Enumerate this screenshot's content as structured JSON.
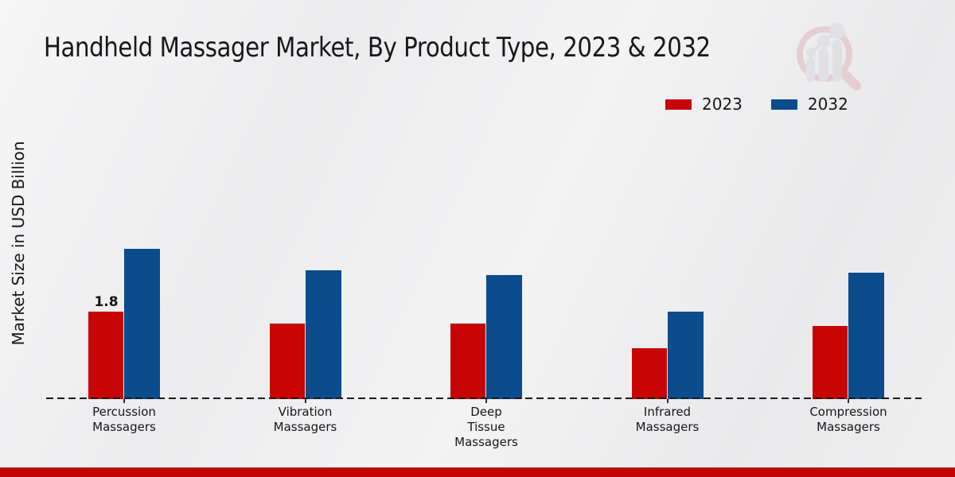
{
  "page": {
    "title": "Handheld Massager Market, By Product Type, 2023 & 2032",
    "ylabel": "Market Size in USD Billion",
    "watermark_icon": "magnifier-growth-chart-logo",
    "accent_bar_color": "#c30404",
    "text_color": "#17181a"
  },
  "legend": {
    "items": [
      {
        "label": "2023",
        "color": "#c70505"
      },
      {
        "label": "2032",
        "color": "#0a4c8c"
      }
    ]
  },
  "chart_data": {
    "type": "bar",
    "title": "Handheld Massager Market, By Product Type, 2023 & 2032",
    "ylabel": "Market Size in USD Billion",
    "units": "USD Billion",
    "categories": [
      "Percussion Massagers",
      "Vibration Massagers",
      "Deep Tissue Massagers",
      "Infrared Massagers",
      "Compression Massagers"
    ],
    "category_label_lines": [
      [
        "Percussion",
        "Massagers"
      ],
      [
        "Vibration",
        "Massagers"
      ],
      [
        "Deep",
        "Tissue",
        "Massagers"
      ],
      [
        "Infrared",
        "Massagers"
      ],
      [
        "Compression",
        "Massagers"
      ]
    ],
    "series": [
      {
        "name": "2023",
        "color": "#c70505",
        "values": [
          1.8,
          1.55,
          1.55,
          1.05,
          1.5
        ]
      },
      {
        "name": "2032",
        "color": "#0a4c8c",
        "values": [
          3.1,
          2.65,
          2.55,
          1.8,
          2.6
        ]
      }
    ],
    "annotations": [
      {
        "category": "Percussion Massagers",
        "series": "2023",
        "text": "1.8"
      }
    ],
    "ylim": [
      0,
      3.5
    ],
    "grid": false,
    "y_axis_visible": false,
    "baseline_style": "dashed",
    "legend_position": "top-right"
  }
}
